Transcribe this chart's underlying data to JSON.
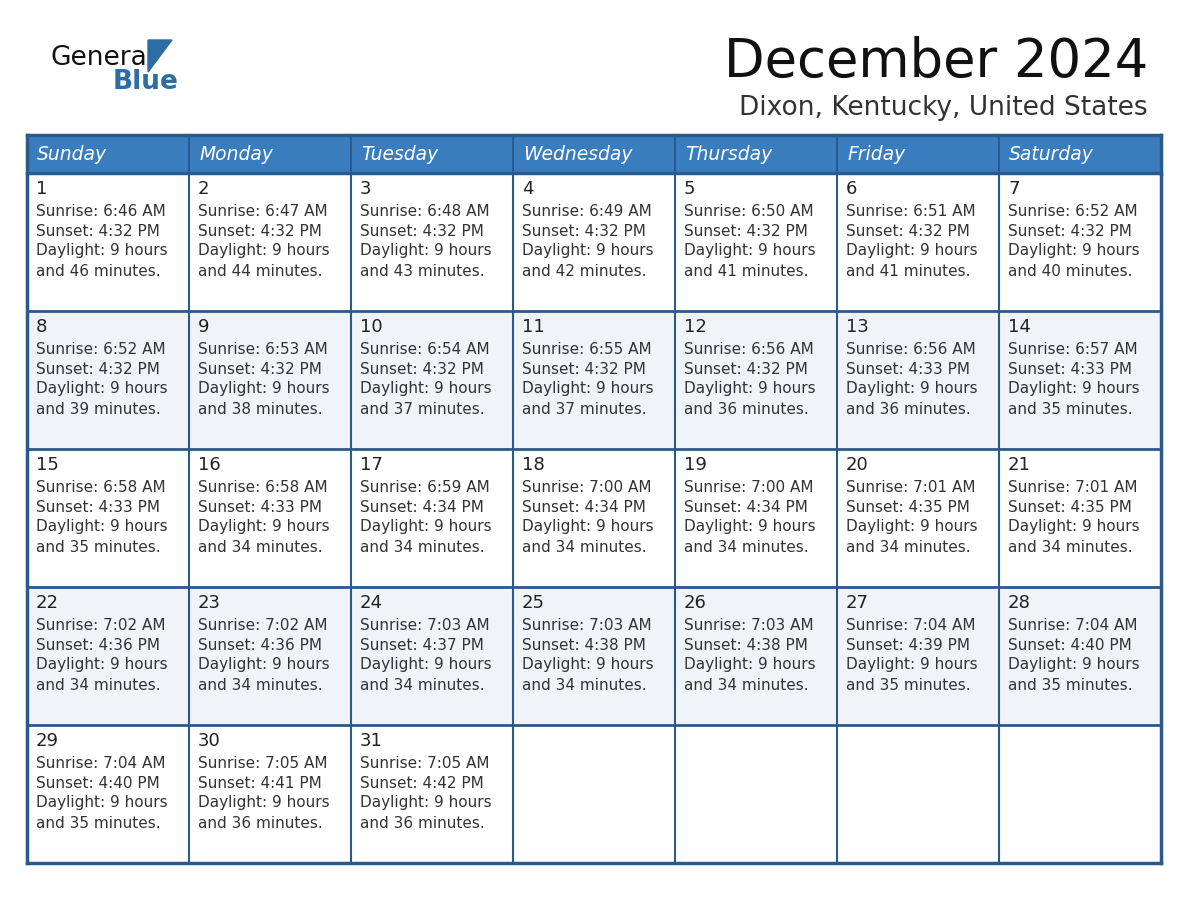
{
  "title": "December 2024",
  "subtitle": "Dixon, Kentucky, United States",
  "days_of_week": [
    "Sunday",
    "Monday",
    "Tuesday",
    "Wednesday",
    "Thursday",
    "Friday",
    "Saturday"
  ],
  "header_bg": "#3a7dbf",
  "header_text_color": "#FFFFFF",
  "row_bg_even": "#FFFFFF",
  "row_bg_odd": "#F0F4F8",
  "border_color": "#3a7dbf",
  "border_color_dark": "#2a5a8a",
  "day_number_color": "#222222",
  "cell_text_color": "#333333",
  "title_color": "#111111",
  "subtitle_color": "#333333",
  "logo_general_color": "#111111",
  "logo_blue_color": "#2E6DA4",
  "calendar_data": [
    [
      {
        "day": 1,
        "sunrise": "6:46 AM",
        "sunset": "4:32 PM",
        "daylight_hrs": "9 hours",
        "daylight_min": "and 46 minutes."
      },
      {
        "day": 2,
        "sunrise": "6:47 AM",
        "sunset": "4:32 PM",
        "daylight_hrs": "9 hours",
        "daylight_min": "and 44 minutes."
      },
      {
        "day": 3,
        "sunrise": "6:48 AM",
        "sunset": "4:32 PM",
        "daylight_hrs": "9 hours",
        "daylight_min": "and 43 minutes."
      },
      {
        "day": 4,
        "sunrise": "6:49 AM",
        "sunset": "4:32 PM",
        "daylight_hrs": "9 hours",
        "daylight_min": "and 42 minutes."
      },
      {
        "day": 5,
        "sunrise": "6:50 AM",
        "sunset": "4:32 PM",
        "daylight_hrs": "9 hours",
        "daylight_min": "and 41 minutes."
      },
      {
        "day": 6,
        "sunrise": "6:51 AM",
        "sunset": "4:32 PM",
        "daylight_hrs": "9 hours",
        "daylight_min": "and 41 minutes."
      },
      {
        "day": 7,
        "sunrise": "6:52 AM",
        "sunset": "4:32 PM",
        "daylight_hrs": "9 hours",
        "daylight_min": "and 40 minutes."
      }
    ],
    [
      {
        "day": 8,
        "sunrise": "6:52 AM",
        "sunset": "4:32 PM",
        "daylight_hrs": "9 hours",
        "daylight_min": "and 39 minutes."
      },
      {
        "day": 9,
        "sunrise": "6:53 AM",
        "sunset": "4:32 PM",
        "daylight_hrs": "9 hours",
        "daylight_min": "and 38 minutes."
      },
      {
        "day": 10,
        "sunrise": "6:54 AM",
        "sunset": "4:32 PM",
        "daylight_hrs": "9 hours",
        "daylight_min": "and 37 minutes."
      },
      {
        "day": 11,
        "sunrise": "6:55 AM",
        "sunset": "4:32 PM",
        "daylight_hrs": "9 hours",
        "daylight_min": "and 37 minutes."
      },
      {
        "day": 12,
        "sunrise": "6:56 AM",
        "sunset": "4:32 PM",
        "daylight_hrs": "9 hours",
        "daylight_min": "and 36 minutes."
      },
      {
        "day": 13,
        "sunrise": "6:56 AM",
        "sunset": "4:33 PM",
        "daylight_hrs": "9 hours",
        "daylight_min": "and 36 minutes."
      },
      {
        "day": 14,
        "sunrise": "6:57 AM",
        "sunset": "4:33 PM",
        "daylight_hrs": "9 hours",
        "daylight_min": "and 35 minutes."
      }
    ],
    [
      {
        "day": 15,
        "sunrise": "6:58 AM",
        "sunset": "4:33 PM",
        "daylight_hrs": "9 hours",
        "daylight_min": "and 35 minutes."
      },
      {
        "day": 16,
        "sunrise": "6:58 AM",
        "sunset": "4:33 PM",
        "daylight_hrs": "9 hours",
        "daylight_min": "and 34 minutes."
      },
      {
        "day": 17,
        "sunrise": "6:59 AM",
        "sunset": "4:34 PM",
        "daylight_hrs": "9 hours",
        "daylight_min": "and 34 minutes."
      },
      {
        "day": 18,
        "sunrise": "7:00 AM",
        "sunset": "4:34 PM",
        "daylight_hrs": "9 hours",
        "daylight_min": "and 34 minutes."
      },
      {
        "day": 19,
        "sunrise": "7:00 AM",
        "sunset": "4:34 PM",
        "daylight_hrs": "9 hours",
        "daylight_min": "and 34 minutes."
      },
      {
        "day": 20,
        "sunrise": "7:01 AM",
        "sunset": "4:35 PM",
        "daylight_hrs": "9 hours",
        "daylight_min": "and 34 minutes."
      },
      {
        "day": 21,
        "sunrise": "7:01 AM",
        "sunset": "4:35 PM",
        "daylight_hrs": "9 hours",
        "daylight_min": "and 34 minutes."
      }
    ],
    [
      {
        "day": 22,
        "sunrise": "7:02 AM",
        "sunset": "4:36 PM",
        "daylight_hrs": "9 hours",
        "daylight_min": "and 34 minutes."
      },
      {
        "day": 23,
        "sunrise": "7:02 AM",
        "sunset": "4:36 PM",
        "daylight_hrs": "9 hours",
        "daylight_min": "and 34 minutes."
      },
      {
        "day": 24,
        "sunrise": "7:03 AM",
        "sunset": "4:37 PM",
        "daylight_hrs": "9 hours",
        "daylight_min": "and 34 minutes."
      },
      {
        "day": 25,
        "sunrise": "7:03 AM",
        "sunset": "4:38 PM",
        "daylight_hrs": "9 hours",
        "daylight_min": "and 34 minutes."
      },
      {
        "day": 26,
        "sunrise": "7:03 AM",
        "sunset": "4:38 PM",
        "daylight_hrs": "9 hours",
        "daylight_min": "and 34 minutes."
      },
      {
        "day": 27,
        "sunrise": "7:04 AM",
        "sunset": "4:39 PM",
        "daylight_hrs": "9 hours",
        "daylight_min": "and 35 minutes."
      },
      {
        "day": 28,
        "sunrise": "7:04 AM",
        "sunset": "4:40 PM",
        "daylight_hrs": "9 hours",
        "daylight_min": "and 35 minutes."
      }
    ],
    [
      {
        "day": 29,
        "sunrise": "7:04 AM",
        "sunset": "4:40 PM",
        "daylight_hrs": "9 hours",
        "daylight_min": "and 35 minutes."
      },
      {
        "day": 30,
        "sunrise": "7:05 AM",
        "sunset": "4:41 PM",
        "daylight_hrs": "9 hours",
        "daylight_min": "and 36 minutes."
      },
      {
        "day": 31,
        "sunrise": "7:05 AM",
        "sunset": "4:42 PM",
        "daylight_hrs": "9 hours",
        "daylight_min": "and 36 minutes."
      },
      null,
      null,
      null,
      null
    ]
  ]
}
